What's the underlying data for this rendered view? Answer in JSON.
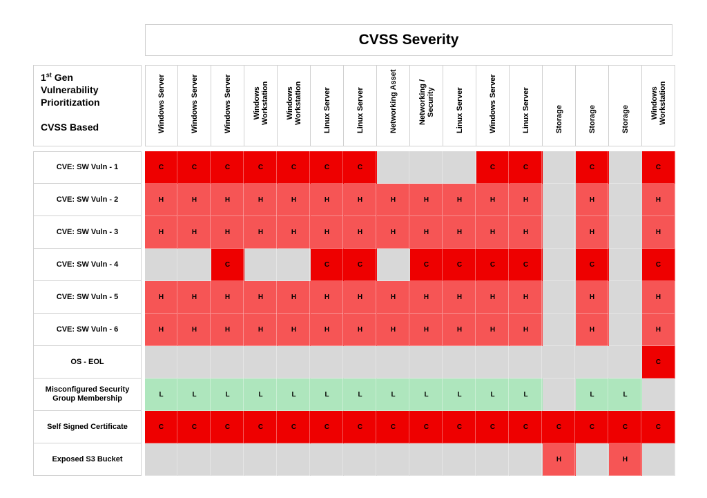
{
  "title": "CVSS Severity",
  "label_box": {
    "line1_prefix": "1",
    "line1_sup": "st",
    "line1_suffix": " Gen",
    "line2": "Vulnerability",
    "line3": "Prioritization",
    "line4": "CVSS Based"
  },
  "columns": [
    "Windows Server",
    "Windows Server",
    "Windows Server",
    "Windows\nWorkstation",
    "Windows\nWorkstation",
    "Linux Server",
    "Linux Server",
    "Networking Asset",
    "Networking /\nSecurity",
    "Linux Server",
    "Windows Server",
    "Linux Server",
    "Storage",
    "Storage",
    "Storage",
    "Windows\nWorkstation"
  ],
  "rows": [
    {
      "label": "CVE: SW Vuln - 1",
      "cells": [
        "C",
        "C",
        "C",
        "C",
        "C",
        "C",
        "C",
        "",
        "",
        "",
        "C",
        "C",
        "",
        "C",
        "",
        "C"
      ]
    },
    {
      "label": "CVE: SW Vuln - 2",
      "cells": [
        "H",
        "H",
        "H",
        "H",
        "H",
        "H",
        "H",
        "H",
        "H",
        "H",
        "H",
        "H",
        "",
        "H",
        "",
        "H"
      ]
    },
    {
      "label": "CVE: SW Vuln - 3",
      "cells": [
        "H",
        "H",
        "H",
        "H",
        "H",
        "H",
        "H",
        "H",
        "H",
        "H",
        "H",
        "H",
        "",
        "H",
        "",
        "H"
      ]
    },
    {
      "label": "CVE: SW Vuln - 4",
      "cells": [
        "",
        "",
        "C",
        "",
        "",
        "C",
        "C",
        "",
        "C",
        "C",
        "C",
        "C",
        "",
        "C",
        "",
        "C"
      ]
    },
    {
      "label": "CVE: SW Vuln - 5",
      "cells": [
        "H",
        "H",
        "H",
        "H",
        "H",
        "H",
        "H",
        "H",
        "H",
        "H",
        "H",
        "H",
        "",
        "H",
        "",
        "H"
      ]
    },
    {
      "label": "CVE: SW Vuln - 6",
      "cells": [
        "H",
        "H",
        "H",
        "H",
        "H",
        "H",
        "H",
        "H",
        "H",
        "H",
        "H",
        "H",
        "",
        "H",
        "",
        "H"
      ]
    },
    {
      "label": "OS - EOL",
      "cells": [
        "",
        "",
        "",
        "",
        "",
        "",
        "",
        "",
        "",
        "",
        "",
        "",
        "",
        "",
        "",
        "C"
      ]
    },
    {
      "label": "Misconfigured Security Group Membership",
      "cells": [
        "L",
        "L",
        "L",
        "L",
        "L",
        "L",
        "L",
        "L",
        "L",
        "L",
        "L",
        "L",
        "",
        "L",
        "L",
        ""
      ]
    },
    {
      "label": "Self Signed Certificate",
      "cells": [
        "C",
        "C",
        "C",
        "C",
        "C",
        "C",
        "C",
        "C",
        "C",
        "C",
        "C",
        "C",
        "C",
        "C",
        "C",
        "C"
      ]
    },
    {
      "label": "Exposed S3 Bucket",
      "cells": [
        "",
        "",
        "",
        "",
        "",
        "",
        "",
        "",
        "",
        "",
        "",
        "",
        "H",
        "",
        "H",
        ""
      ]
    }
  ],
  "colors": {
    "critical": "#ee0000",
    "high": "#f65555",
    "low": "#aee6bd",
    "none": "#d8d8d8"
  }
}
